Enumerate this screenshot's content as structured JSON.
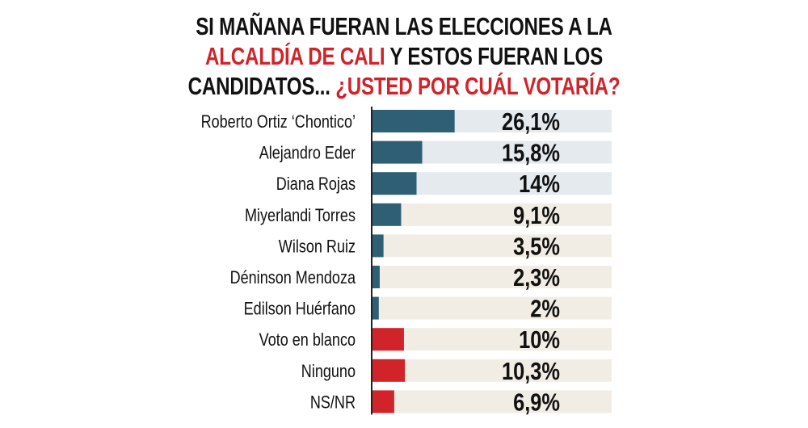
{
  "chart_data": {
    "type": "bar",
    "orientation": "horizontal",
    "title": {
      "line1": "SI MAÑANA FUERAN LAS ELECCIONES A LA",
      "line2_red": "ALCALDÍA DE CALI",
      "line2_black": " Y ESTOS FUERAN LOS",
      "line3_black": "CANDIDATOS... ",
      "line3_red": "¿USTED POR CUÁL VOTARÍA?"
    },
    "categories": [
      "Roberto Ortiz ‘Chontico’",
      "Alejandro Eder",
      "Diana Rojas",
      "Miyerlandi Torres",
      "Wilson Ruiz",
      "Déninson Mendoza",
      "Edilson Huérfano",
      "Voto en blanco",
      "Ninguno",
      "NS/NR"
    ],
    "values": [
      26.1,
      15.8,
      14,
      9.1,
      3.5,
      2.3,
      2,
      10,
      10.3,
      6.9
    ],
    "value_labels": [
      "26,1%",
      "15,8%",
      "14%",
      "9,1%",
      "3,5%",
      "2,3%",
      "2%",
      "10%",
      "10,3%",
      "6,9%"
    ],
    "bar_colors": [
      "#2e5f74",
      "#2e5f74",
      "#2e5f74",
      "#2e5f74",
      "#2e5f74",
      "#2e5f74",
      "#2e5f74",
      "#d0232a",
      "#d0232a",
      "#d0232a"
    ],
    "track_colors": [
      "#e5eaee",
      "#e5eaee",
      "#e5eaee",
      "#f1ede4",
      "#f1ede4",
      "#f1ede4",
      "#f1ede4",
      "#f1ede4",
      "#f1ede4",
      "#f1ede4"
    ],
    "xlim": [
      0,
      76
    ],
    "grid": false,
    "legend": "none"
  }
}
